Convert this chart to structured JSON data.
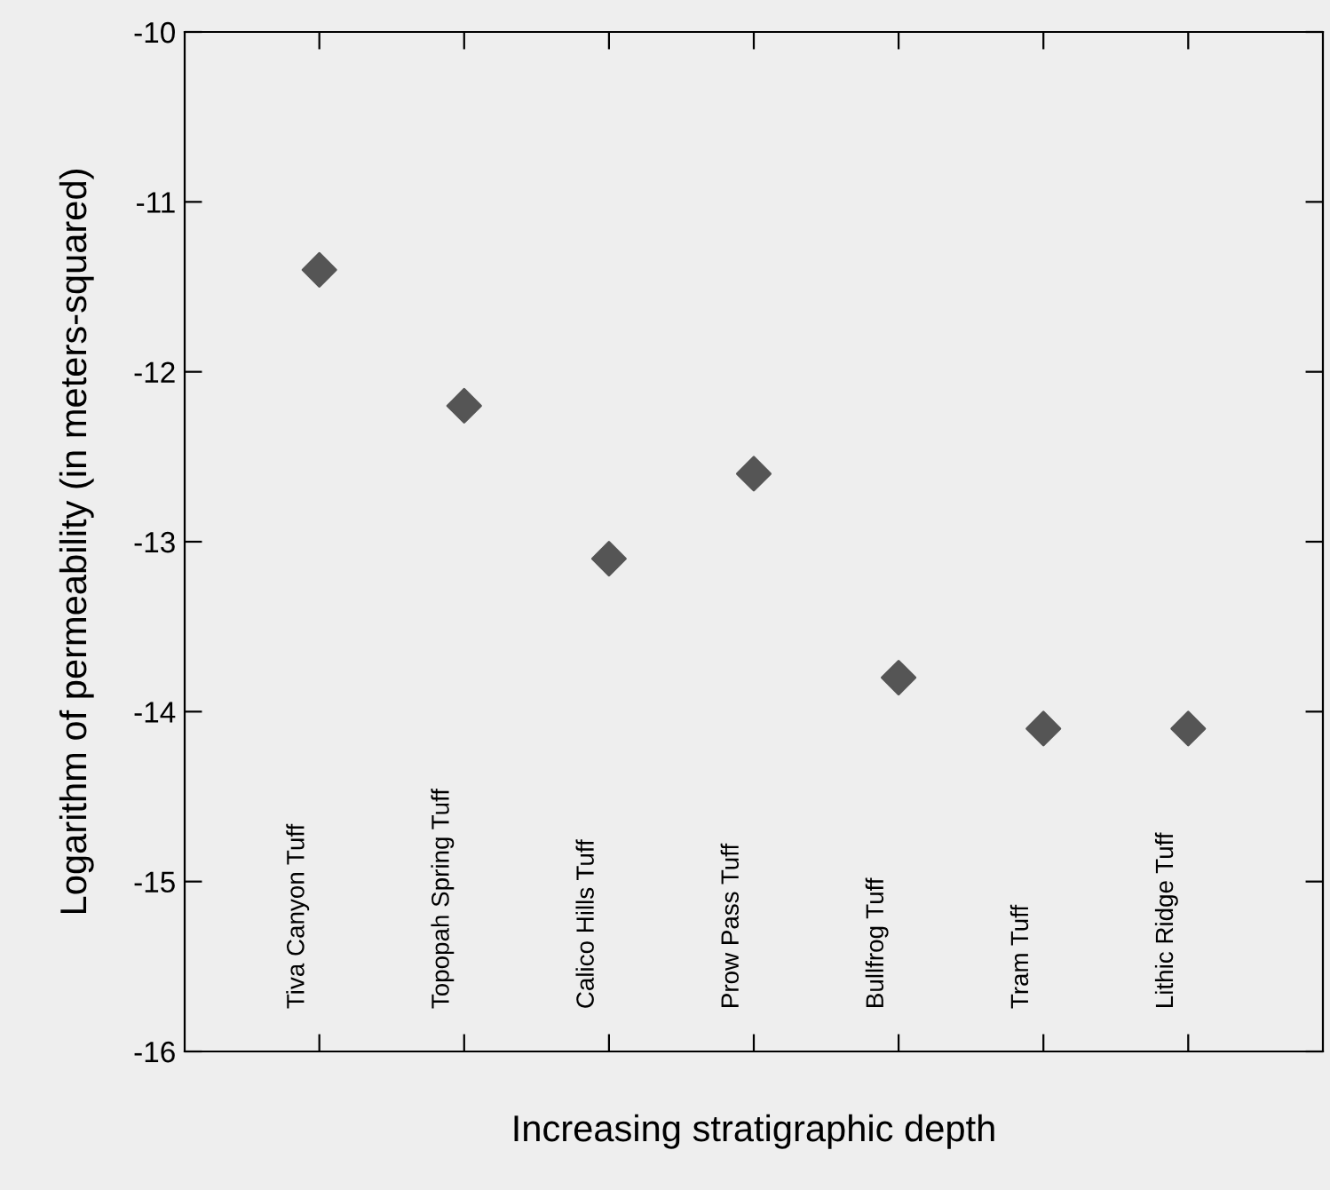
{
  "chart_data": {
    "type": "scatter",
    "xlabel": "Increasing stratigraphic depth",
    "ylabel": "Logarithm of permeability (in meters-squared)",
    "categories": [
      "Tiva Canyon Tuff",
      "Topopah Spring Tuff",
      "Calico Hills Tuff",
      "Prow Pass Tuff",
      "Bullfrog Tuff",
      "Tram Tuff",
      "Lithic Ridge Tuff"
    ],
    "values": [
      -11.4,
      -12.2,
      -13.1,
      -12.6,
      -13.8,
      -14.1,
      -14.1
    ],
    "color": "#555555",
    "marker": "diamond",
    "ylim": [
      -16,
      -10
    ],
    "yticks": [
      -16,
      -15,
      -14,
      -13,
      -12,
      -11,
      -10
    ],
    "grid": false,
    "legend": false
  }
}
